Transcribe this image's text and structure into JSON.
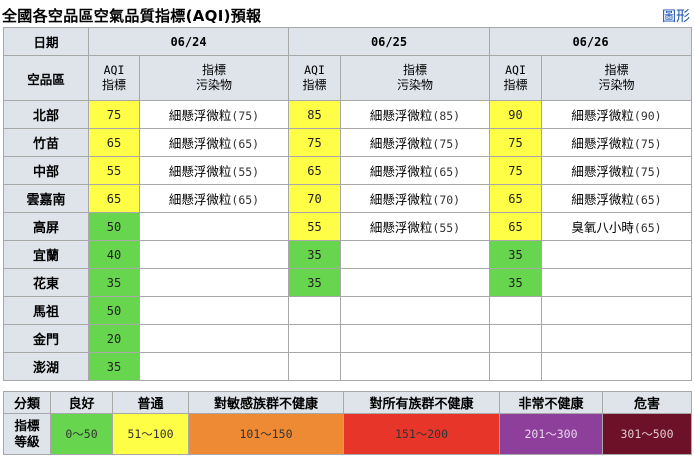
{
  "header": {
    "title": "全國各空品區空氣品質指標(AQI)預報",
    "chart_link": "圖形"
  },
  "table": {
    "date_label": "日期",
    "region_label": "空品區",
    "aqi_label_1": "AQI",
    "aqi_label_2": "指標",
    "pollutant_label_1": "指標",
    "pollutant_label_2": "污染物",
    "dates": [
      "06/24",
      "06/25",
      "06/26"
    ],
    "rows": [
      {
        "region": "北部",
        "days": [
          {
            "aqi": "75",
            "level": "mod",
            "pollutant": "細懸浮微粒",
            "value": "(75)"
          },
          {
            "aqi": "85",
            "level": "mod",
            "pollutant": "細懸浮微粒",
            "value": "(85)"
          },
          {
            "aqi": "90",
            "level": "mod",
            "pollutant": "細懸浮微粒",
            "value": "(90)"
          }
        ]
      },
      {
        "region": "竹苗",
        "days": [
          {
            "aqi": "65",
            "level": "mod",
            "pollutant": "細懸浮微粒",
            "value": "(65)"
          },
          {
            "aqi": "75",
            "level": "mod",
            "pollutant": "細懸浮微粒",
            "value": "(75)"
          },
          {
            "aqi": "75",
            "level": "mod",
            "pollutant": "細懸浮微粒",
            "value": "(75)"
          }
        ]
      },
      {
        "region": "中部",
        "days": [
          {
            "aqi": "55",
            "level": "mod",
            "pollutant": "細懸浮微粒",
            "value": "(55)"
          },
          {
            "aqi": "65",
            "level": "mod",
            "pollutant": "細懸浮微粒",
            "value": "(65)"
          },
          {
            "aqi": "75",
            "level": "mod",
            "pollutant": "細懸浮微粒",
            "value": "(75)"
          }
        ]
      },
      {
        "region": "雲嘉南",
        "days": [
          {
            "aqi": "65",
            "level": "mod",
            "pollutant": "細懸浮微粒",
            "value": "(65)"
          },
          {
            "aqi": "70",
            "level": "mod",
            "pollutant": "細懸浮微粒",
            "value": "(70)"
          },
          {
            "aqi": "65",
            "level": "mod",
            "pollutant": "細懸浮微粒",
            "value": "(65)"
          }
        ]
      },
      {
        "region": "高屏",
        "days": [
          {
            "aqi": "50",
            "level": "good",
            "pollutant": "",
            "value": ""
          },
          {
            "aqi": "55",
            "level": "mod",
            "pollutant": "細懸浮微粒",
            "value": "(55)"
          },
          {
            "aqi": "65",
            "level": "mod",
            "pollutant": "臭氧八小時",
            "value": "(65)"
          }
        ]
      },
      {
        "region": "宜蘭",
        "days": [
          {
            "aqi": "40",
            "level": "good",
            "pollutant": "",
            "value": ""
          },
          {
            "aqi": "35",
            "level": "good",
            "pollutant": "",
            "value": ""
          },
          {
            "aqi": "35",
            "level": "good",
            "pollutant": "",
            "value": ""
          }
        ]
      },
      {
        "region": "花東",
        "days": [
          {
            "aqi": "35",
            "level": "good",
            "pollutant": "",
            "value": ""
          },
          {
            "aqi": "35",
            "level": "good",
            "pollutant": "",
            "value": ""
          },
          {
            "aqi": "35",
            "level": "good",
            "pollutant": "",
            "value": ""
          }
        ]
      },
      {
        "region": "馬祖",
        "days": [
          {
            "aqi": "50",
            "level": "good",
            "pollutant": "",
            "value": ""
          },
          {
            "aqi": "",
            "level": "none",
            "pollutant": "",
            "value": ""
          },
          {
            "aqi": "",
            "level": "none",
            "pollutant": "",
            "value": ""
          }
        ]
      },
      {
        "region": "金門",
        "days": [
          {
            "aqi": "20",
            "level": "good",
            "pollutant": "",
            "value": ""
          },
          {
            "aqi": "",
            "level": "none",
            "pollutant": "",
            "value": ""
          },
          {
            "aqi": "",
            "level": "none",
            "pollutant": "",
            "value": ""
          }
        ]
      },
      {
        "region": "澎湖",
        "days": [
          {
            "aqi": "35",
            "level": "good",
            "pollutant": "",
            "value": ""
          },
          {
            "aqi": "",
            "level": "none",
            "pollutant": "",
            "value": ""
          },
          {
            "aqi": "",
            "level": "none",
            "pollutant": "",
            "value": ""
          }
        ]
      }
    ]
  },
  "legend": {
    "category_label": "分類",
    "level_label_1": "指標",
    "level_label_2": "等級",
    "items": [
      {
        "name": "良好",
        "range": "0～50",
        "color": "#67d54e",
        "text_color": "#333333"
      },
      {
        "name": "普通",
        "range": "51～100",
        "color": "#fffe46",
        "text_color": "#333333"
      },
      {
        "name": "對敏感族群不健康",
        "range": "101～150",
        "color": "#ef8a34",
        "text_color": "#333333"
      },
      {
        "name": "對所有族群不健康",
        "range": "151～200",
        "color": "#e8352a",
        "text_color": "#333333"
      },
      {
        "name": "非常不健康",
        "range": "201～300",
        "color": "#8e3e9b",
        "text_color": "#e8d8ec"
      },
      {
        "name": "危害",
        "range": "301～500",
        "color": "#6c1127",
        "text_color": "#e0c8cc"
      }
    ]
  }
}
